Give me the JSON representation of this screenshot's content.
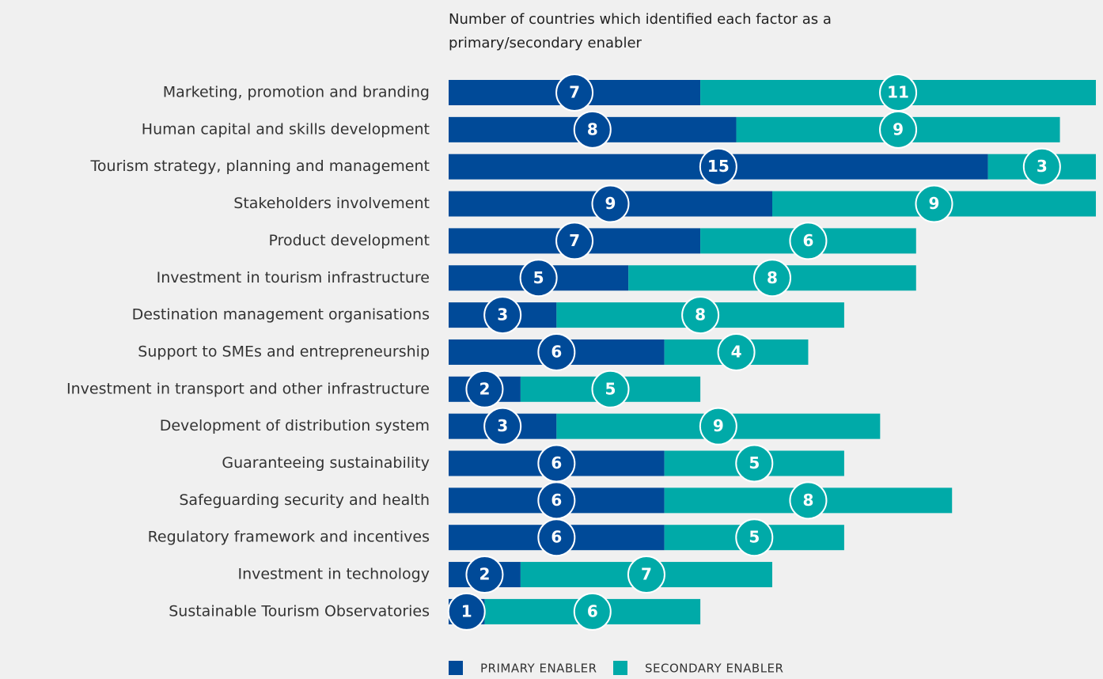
{
  "chart_data": {
    "type": "stacked-bar-horizontal",
    "title": "Number of countries which identified each factor as a primary/secondary enabler",
    "categories": [
      "Marketing, promotion and branding",
      "Human capital and skills development",
      "Tourism strategy, planning and management",
      "Stakeholders involvement",
      "Product development",
      "Investment in tourism infrastructure",
      "Destination management organisations",
      "Support to SMEs and entrepreneurship",
      "Investment in transport and other infrastructure",
      "Development of distribution system",
      "Guaranteeing sustainability",
      "Safeguarding security and health",
      "Regulatory framework and incentives",
      "Investment in technology",
      "Sustainable Tourism Observatories"
    ],
    "series": [
      {
        "name": "PRIMARY ENABLER",
        "color": "#004a98",
        "values": [
          7,
          8,
          15,
          9,
          7,
          5,
          3,
          6,
          2,
          3,
          6,
          6,
          6,
          2,
          1
        ]
      },
      {
        "name": "SECONDARY ENABLER",
        "color": "#00aaa8",
        "values": [
          11,
          9,
          3,
          9,
          6,
          8,
          8,
          4,
          5,
          9,
          5,
          8,
          5,
          7,
          6
        ]
      }
    ],
    "legend": "bottom"
  }
}
